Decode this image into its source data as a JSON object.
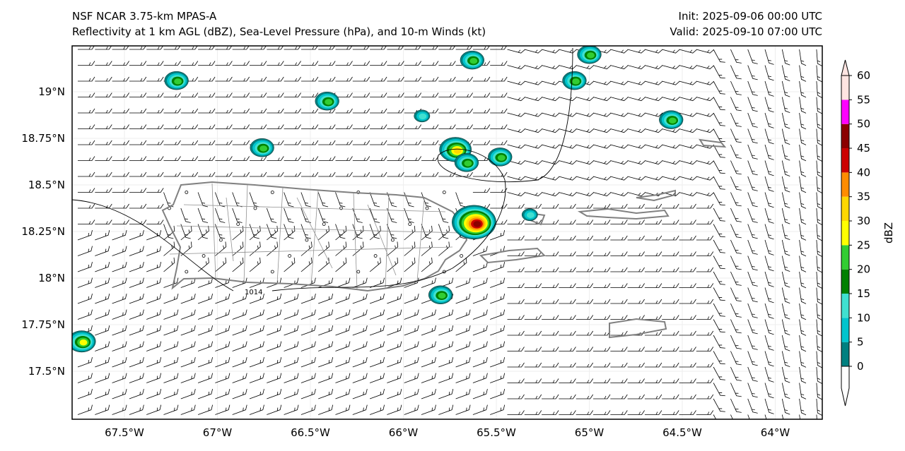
{
  "header": {
    "title_line1": "NSF NCAR 3.75-km MPAS-A",
    "title_line2": "Reflectivity at 1 km AGL (dBZ), Sea-Level Pressure (hPa), and 10-m Winds (kt)",
    "init": "Init: 2025-09-06 00:00 UTC",
    "valid": "Valid: 2025-09-10 07:00 UTC"
  },
  "map": {
    "lon_ticks": [
      {
        "v": -67.5,
        "label": "67.5°W"
      },
      {
        "v": -67,
        "label": "67°W"
      },
      {
        "v": -66.5,
        "label": "66.5°W"
      },
      {
        "v": -66,
        "label": "66°W"
      },
      {
        "v": -65.5,
        "label": "65.5°W"
      },
      {
        "v": -65,
        "label": "65°W"
      },
      {
        "v": -64.5,
        "label": "64.5°W"
      },
      {
        "v": -64,
        "label": "64°W"
      }
    ],
    "lat_ticks": [
      {
        "v": 19,
        "label": "19°N"
      },
      {
        "v": 18.75,
        "label": "18.75°N"
      },
      {
        "v": 18.5,
        "label": "18.5°N"
      },
      {
        "v": 18.25,
        "label": "18.25°N"
      },
      {
        "v": 18,
        "label": "18°N"
      },
      {
        "v": 17.75,
        "label": "17.75°N"
      },
      {
        "v": 17.5,
        "label": "17.5°N"
      }
    ],
    "isobar_label": "1014",
    "cells": [
      {
        "lon": -67.22,
        "lat": 19.06,
        "max": 20
      },
      {
        "lon": -66.41,
        "lat": 18.95,
        "max": 20
      },
      {
        "lon": -66.76,
        "lat": 18.7,
        "max": 20
      },
      {
        "lon": -65.63,
        "lat": 19.17,
        "max": 20
      },
      {
        "lon": -65.0,
        "lat": 19.2,
        "max": 20
      },
      {
        "lon": -65.08,
        "lat": 19.06,
        "max": 20
      },
      {
        "lon": -65.9,
        "lat": 18.87,
        "max": 10
      },
      {
        "lon": -65.72,
        "lat": 18.69,
        "max": 30
      },
      {
        "lon": -65.66,
        "lat": 18.62,
        "max": 20
      },
      {
        "lon": -65.48,
        "lat": 18.65,
        "max": 20
      },
      {
        "lon": -64.56,
        "lat": 18.85,
        "max": 20
      },
      {
        "lon": -65.62,
        "lat": 18.3,
        "max": 45
      },
      {
        "lon": -65.8,
        "lat": 17.91,
        "max": 20
      },
      {
        "lon": -67.73,
        "lat": 17.66,
        "max": 25
      },
      {
        "lon": -65.32,
        "lat": 18.34,
        "max": 10
      }
    ]
  },
  "colorbar": {
    "label": "dBZ",
    "levels": [
      0,
      5,
      10,
      15,
      20,
      25,
      30,
      35,
      40,
      45,
      50,
      55,
      60
    ],
    "tick_labels": [
      "0",
      "5",
      "10",
      "15",
      "20",
      "25",
      "30",
      "35",
      "40",
      "45",
      "50",
      "55",
      "60"
    ],
    "colors": [
      "#008080",
      "#00c5cd",
      "#40e0d0",
      "#008000",
      "#32cd32",
      "#ffff00",
      "#ffd700",
      "#ff8c00",
      "#cc0000",
      "#8b0000",
      "#ff00ff",
      "#ffe4e1"
    ]
  }
}
